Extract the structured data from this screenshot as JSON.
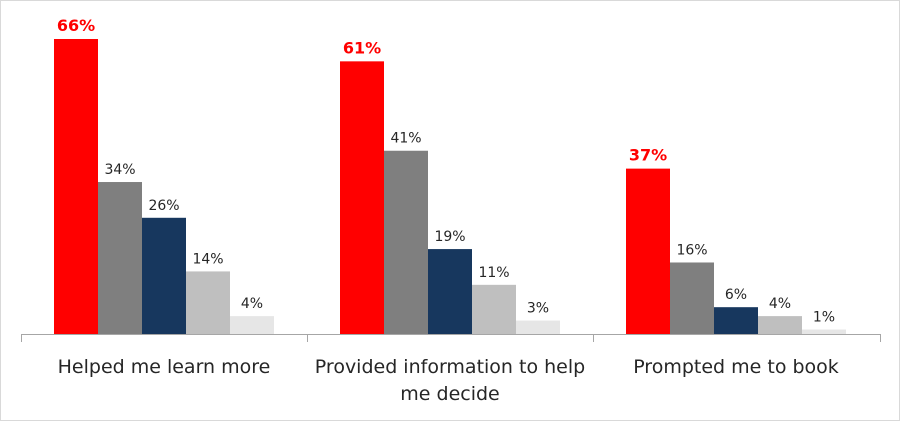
{
  "chart_data": {
    "type": "bar",
    "title": "",
    "xlabel": "",
    "ylabel": "",
    "ylim": [
      0,
      66
    ],
    "grid": false,
    "legend": "none",
    "value_suffix": "%",
    "categories": [
      [
        "Helped me learn more"
      ],
      [
        "Provided information to help",
        "me decide"
      ],
      [
        "Prompted me to book"
      ]
    ],
    "series_colors": [
      "#ff0000",
      "#7f7f7f",
      "#17375e",
      "#bfbfbf",
      "#e6e6e6"
    ],
    "values": [
      [
        66,
        34,
        26,
        14,
        4
      ],
      [
        61,
        41,
        19,
        11,
        3
      ],
      [
        37,
        16,
        6,
        4,
        1
      ]
    ],
    "highlight_series": 0,
    "axis_color": "#a6a6a6"
  }
}
